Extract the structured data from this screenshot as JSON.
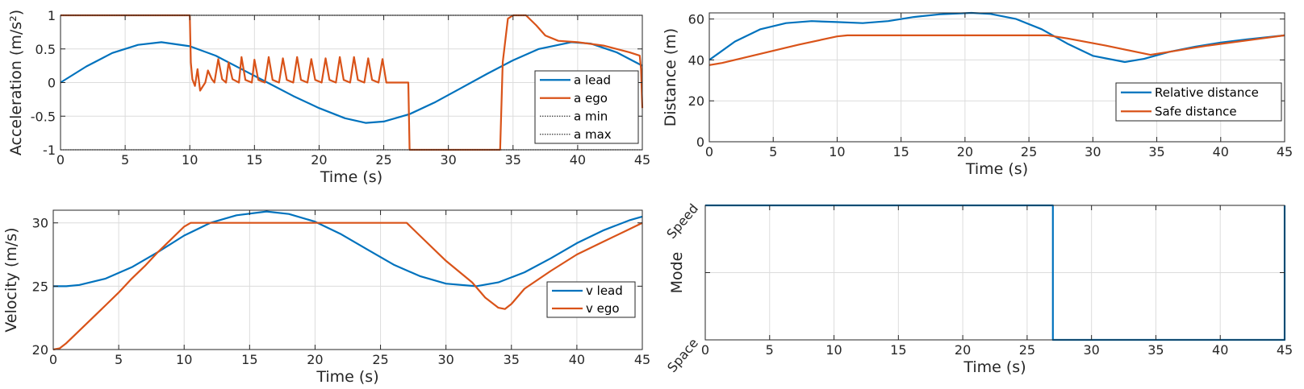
{
  "colors": {
    "blue": "#0072BD",
    "orange": "#D95319",
    "limit": "#333333"
  },
  "chart_data": [
    {
      "id": "accel",
      "type": "line",
      "xlabel": "Time (s)",
      "ylabel": "Acceleration (m/s²)",
      "xlim": [
        0,
        45
      ],
      "ylim": [
        -1,
        1
      ],
      "xticks": [
        0,
        5,
        10,
        15,
        20,
        25,
        30,
        35,
        40,
        45
      ],
      "yticks": [
        -1,
        -0.5,
        0,
        0.5,
        1
      ],
      "xtick_labels": [
        "0",
        "5",
        "10",
        "15",
        "20",
        "25",
        "30",
        "35",
        "40",
        "45"
      ],
      "ytick_labels": [
        "-1",
        "-0.5",
        "0",
        "0.5",
        "1"
      ],
      "grid": true,
      "legend_position": "right",
      "series": [
        {
          "name": "a lead",
          "color": "#0072BD",
          "style": "solid",
          "x": [
            0,
            2,
            4,
            6,
            7.8,
            10,
            12,
            14,
            16,
            18,
            20,
            22,
            23.6,
            25,
            27,
            29,
            31,
            33,
            35,
            37,
            39.5,
            41,
            43,
            45
          ],
          "y": [
            0,
            0.24,
            0.44,
            0.56,
            0.6,
            0.54,
            0.4,
            0.2,
            0.0,
            -0.2,
            -0.38,
            -0.53,
            -0.6,
            -0.58,
            -0.47,
            -0.29,
            -0.08,
            0.13,
            0.33,
            0.5,
            0.6,
            0.58,
            0.45,
            0.25
          ]
        },
        {
          "name": "a ego",
          "color": "#D95319",
          "style": "solid",
          "x": [
            0,
            10,
            10.08,
            10.2,
            10.4,
            10.6,
            10.8,
            11.2,
            11.4,
            11.7,
            11.9,
            12.2,
            12.5,
            12.8,
            13.0,
            13.3,
            13.8,
            14.0,
            14.3,
            14.8,
            15.0,
            15.3,
            15.8,
            16.1,
            16.4,
            16.9,
            17.2,
            17.5,
            18.0,
            18.3,
            18.6,
            19.1,
            19.4,
            19.7,
            20.2,
            20.5,
            20.8,
            21.3,
            21.6,
            21.9,
            22.4,
            22.7,
            23.0,
            23.5,
            23.8,
            24.1,
            24.6,
            24.9,
            25.2,
            25.7,
            26.0,
            26.9,
            27.0,
            27.05,
            34.0,
            34.2,
            34.6,
            35.0,
            36.0,
            36.8,
            37.5,
            38.5,
            40.0,
            42.0,
            44.0,
            44.8,
            44.9,
            45.0
          ],
          "y": [
            1,
            1,
            0.3,
            0.05,
            -0.05,
            0.2,
            -0.12,
            0.0,
            0.18,
            0.05,
            0.0,
            0.35,
            0.05,
            0.0,
            0.3,
            0.05,
            0.0,
            0.38,
            0.04,
            0.0,
            0.34,
            0.04,
            0.0,
            0.38,
            0.04,
            0.0,
            0.36,
            0.04,
            0.0,
            0.38,
            0.04,
            0.0,
            0.35,
            0.04,
            0.0,
            0.36,
            0.04,
            0.0,
            0.38,
            0.04,
            0.0,
            0.38,
            0.04,
            0.0,
            0.36,
            0.04,
            0.0,
            0.35,
            0.0,
            0.0,
            0.0,
            0.0,
            -1,
            -1,
            -1,
            0.3,
            0.95,
            1,
            1,
            0.85,
            0.7,
            0.62,
            0.6,
            0.55,
            0.45,
            0.4,
            0.2,
            -0.38
          ]
        },
        {
          "name": "a min",
          "color": "#333333",
          "style": "dotted",
          "x": [
            0,
            45
          ],
          "y": [
            -1,
            -1
          ]
        },
        {
          "name": "a max",
          "color": "#333333",
          "style": "dotted",
          "x": [
            0,
            45
          ],
          "y": [
            1,
            1
          ]
        }
      ]
    },
    {
      "id": "distance",
      "type": "line",
      "xlabel": "Time (s)",
      "ylabel": "Distance (m)",
      "xlim": [
        0,
        45
      ],
      "ylim": [
        0,
        63
      ],
      "xticks": [
        0,
        5,
        10,
        15,
        20,
        25,
        30,
        35,
        40,
        45
      ],
      "yticks": [
        0,
        20,
        40,
        60
      ],
      "xtick_labels": [
        "0",
        "5",
        "10",
        "15",
        "20",
        "25",
        "30",
        "35",
        "40",
        "45"
      ],
      "ytick_labels": [
        "0",
        "20",
        "40",
        "60"
      ],
      "grid": true,
      "legend_position": "bottom-right",
      "series": [
        {
          "name": "Relative distance",
          "color": "#0072BD",
          "style": "solid",
          "x": [
            0,
            2,
            4,
            6,
            8,
            10,
            12,
            14,
            16,
            18,
            20.5,
            22,
            24,
            26,
            28,
            30,
            32.5,
            34,
            36,
            38,
            40,
            42,
            45
          ],
          "y": [
            40,
            49,
            55,
            58,
            59,
            58.5,
            58,
            59,
            61,
            62.3,
            63,
            62.5,
            60,
            55,
            48,
            42,
            39,
            40.5,
            44,
            46.5,
            48.5,
            50,
            52
          ]
        },
        {
          "name": "Safe distance",
          "color": "#D95319",
          "style": "solid",
          "x": [
            0,
            1,
            4,
            7,
            10,
            10.8,
            15,
            20,
            25,
            26.5,
            28,
            31,
            34.5,
            36,
            39,
            42,
            45
          ],
          "y": [
            37.5,
            38.5,
            43,
            47.5,
            51.5,
            52,
            52,
            52,
            52,
            52,
            50.5,
            47,
            42.5,
            44,
            47,
            49.5,
            52
          ]
        }
      ]
    },
    {
      "id": "velocity",
      "type": "line",
      "xlabel": "Time (s)",
      "ylabel": "Velocity (m/s)",
      "xlim": [
        0,
        45
      ],
      "ylim": [
        20,
        31
      ],
      "xticks": [
        0,
        5,
        10,
        15,
        20,
        25,
        30,
        35,
        40,
        45
      ],
      "yticks": [
        20,
        25,
        30
      ],
      "xtick_labels": [
        "0",
        "5",
        "10",
        "15",
        "20",
        "25",
        "30",
        "35",
        "40",
        "45"
      ],
      "ytick_labels": [
        "20",
        "25",
        "30"
      ],
      "grid": true,
      "legend_position": "right",
      "series": [
        {
          "name": "v lead",
          "color": "#0072BD",
          "style": "solid",
          "x": [
            0,
            1,
            2,
            4,
            6,
            8,
            10,
            12,
            14,
            16.3,
            18,
            20,
            22,
            24,
            26,
            28,
            30,
            32.3,
            34,
            36,
            38,
            40,
            42,
            44,
            45
          ],
          "y": [
            25,
            25,
            25.1,
            25.6,
            26.5,
            27.7,
            29.0,
            30.0,
            30.6,
            30.9,
            30.7,
            30.1,
            29.1,
            27.9,
            26.7,
            25.8,
            25.2,
            25.0,
            25.3,
            26.1,
            27.2,
            28.4,
            29.4,
            30.2,
            30.5
          ]
        },
        {
          "name": "v ego",
          "color": "#D95319",
          "style": "solid",
          "x": [
            0,
            0.5,
            1,
            2,
            3,
            4,
            5,
            6,
            7,
            8,
            9,
            10,
            10.5,
            11,
            15,
            20,
            25,
            27,
            28,
            30,
            32,
            33,
            34,
            34.5,
            35,
            36,
            38,
            40,
            42,
            44,
            45
          ],
          "y": [
            20,
            20.1,
            20.5,
            21.5,
            22.5,
            23.5,
            24.5,
            25.6,
            26.6,
            27.7,
            28.7,
            29.7,
            30.0,
            30.0,
            30.0,
            30.0,
            30.0,
            30.0,
            29.0,
            27.0,
            25.3,
            24.1,
            23.3,
            23.2,
            23.6,
            24.8,
            26.2,
            27.5,
            28.5,
            29.5,
            30.0
          ]
        }
      ]
    },
    {
      "id": "mode",
      "type": "line",
      "xlabel": "Time (s)",
      "ylabel": "Mode",
      "xlim": [
        0,
        45
      ],
      "ylim": [
        0,
        1
      ],
      "xticks": [
        0,
        5,
        10,
        15,
        20,
        25,
        30,
        35,
        40,
        45
      ],
      "yticks": [
        0,
        0.5,
        1
      ],
      "xtick_labels": [
        "0",
        "5",
        "10",
        "15",
        "20",
        "25",
        "30",
        "35",
        "40",
        "45"
      ],
      "ytick_labels": [
        "Space",
        "",
        "Speed"
      ],
      "grid": true,
      "legend_position": "none",
      "series": [
        {
          "name": "mode",
          "color": "#0072BD",
          "style": "solid",
          "x": [
            0,
            27,
            27,
            45,
            45
          ],
          "y": [
            1,
            1,
            0,
            0,
            1
          ]
        }
      ]
    }
  ]
}
